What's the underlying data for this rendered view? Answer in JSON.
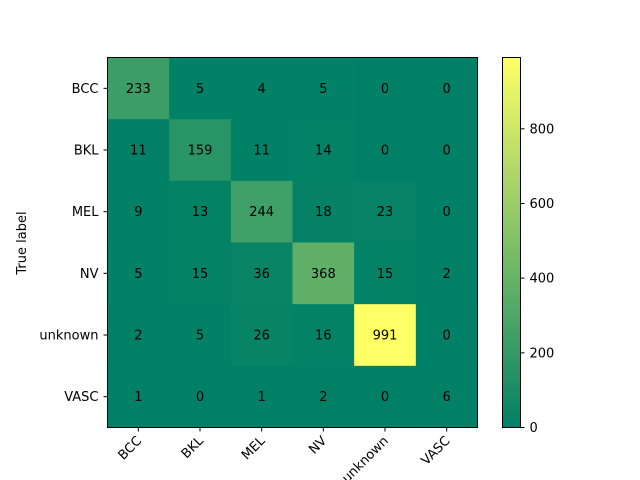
{
  "chart_data": {
    "type": "heatmap",
    "title": "",
    "xlabel": "",
    "ylabel": "True label",
    "x_categories": [
      "BCC",
      "BKL",
      "MEL",
      "NV",
      "unknown",
      "VASC"
    ],
    "y_categories": [
      "BCC",
      "BKL",
      "MEL",
      "NV",
      "unknown",
      "VASC"
    ],
    "values": [
      [
        233,
        5,
        4,
        5,
        0,
        0
      ],
      [
        11,
        159,
        11,
        14,
        0,
        0
      ],
      [
        9,
        13,
        244,
        18,
        23,
        0
      ],
      [
        5,
        15,
        36,
        368,
        15,
        2
      ],
      [
        2,
        5,
        26,
        16,
        991,
        0
      ],
      [
        1,
        0,
        1,
        2,
        0,
        6
      ]
    ],
    "colorbar": {
      "min": 0,
      "max": 991,
      "ticks": [
        0,
        200,
        400,
        600,
        800
      ],
      "colormap": "summer",
      "color_low": "#008066",
      "color_high": "#ffff66"
    },
    "grid": false,
    "text_color": "#000000"
  }
}
